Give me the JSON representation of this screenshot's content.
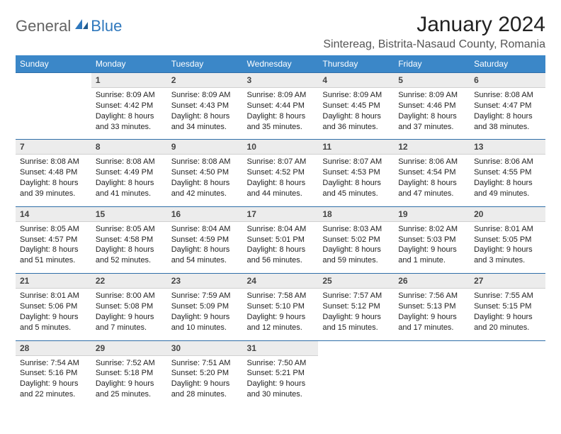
{
  "logo": {
    "general": "General",
    "blue": "Blue"
  },
  "title": "January 2024",
  "location": "Sintereag, Bistrita-Nasaud County, Romania",
  "colors": {
    "header_bg": "#3b87c8",
    "header_text": "#ffffff",
    "daynum_bg": "#ececec",
    "accent_border": "#2f6ea8",
    "logo_blue": "#2f78bd",
    "logo_gray": "#636363"
  },
  "typography": {
    "title_fontsize": 30,
    "location_fontsize": 16,
    "dow_fontsize": 12,
    "cell_fontsize": 11
  },
  "day_names": [
    "Sunday",
    "Monday",
    "Tuesday",
    "Wednesday",
    "Thursday",
    "Friday",
    "Saturday"
  ],
  "weeks": [
    {
      "nums": [
        "",
        "1",
        "2",
        "3",
        "4",
        "5",
        "6"
      ],
      "cells": [
        null,
        {
          "sunrise": "Sunrise: 8:09 AM",
          "sunset": "Sunset: 4:42 PM",
          "day1": "Daylight: 8 hours",
          "day2": "and 33 minutes."
        },
        {
          "sunrise": "Sunrise: 8:09 AM",
          "sunset": "Sunset: 4:43 PM",
          "day1": "Daylight: 8 hours",
          "day2": "and 34 minutes."
        },
        {
          "sunrise": "Sunrise: 8:09 AM",
          "sunset": "Sunset: 4:44 PM",
          "day1": "Daylight: 8 hours",
          "day2": "and 35 minutes."
        },
        {
          "sunrise": "Sunrise: 8:09 AM",
          "sunset": "Sunset: 4:45 PM",
          "day1": "Daylight: 8 hours",
          "day2": "and 36 minutes."
        },
        {
          "sunrise": "Sunrise: 8:09 AM",
          "sunset": "Sunset: 4:46 PM",
          "day1": "Daylight: 8 hours",
          "day2": "and 37 minutes."
        },
        {
          "sunrise": "Sunrise: 8:08 AM",
          "sunset": "Sunset: 4:47 PM",
          "day1": "Daylight: 8 hours",
          "day2": "and 38 minutes."
        }
      ]
    },
    {
      "nums": [
        "7",
        "8",
        "9",
        "10",
        "11",
        "12",
        "13"
      ],
      "cells": [
        {
          "sunrise": "Sunrise: 8:08 AM",
          "sunset": "Sunset: 4:48 PM",
          "day1": "Daylight: 8 hours",
          "day2": "and 39 minutes."
        },
        {
          "sunrise": "Sunrise: 8:08 AM",
          "sunset": "Sunset: 4:49 PM",
          "day1": "Daylight: 8 hours",
          "day2": "and 41 minutes."
        },
        {
          "sunrise": "Sunrise: 8:08 AM",
          "sunset": "Sunset: 4:50 PM",
          "day1": "Daylight: 8 hours",
          "day2": "and 42 minutes."
        },
        {
          "sunrise": "Sunrise: 8:07 AM",
          "sunset": "Sunset: 4:52 PM",
          "day1": "Daylight: 8 hours",
          "day2": "and 44 minutes."
        },
        {
          "sunrise": "Sunrise: 8:07 AM",
          "sunset": "Sunset: 4:53 PM",
          "day1": "Daylight: 8 hours",
          "day2": "and 45 minutes."
        },
        {
          "sunrise": "Sunrise: 8:06 AM",
          "sunset": "Sunset: 4:54 PM",
          "day1": "Daylight: 8 hours",
          "day2": "and 47 minutes."
        },
        {
          "sunrise": "Sunrise: 8:06 AM",
          "sunset": "Sunset: 4:55 PM",
          "day1": "Daylight: 8 hours",
          "day2": "and 49 minutes."
        }
      ]
    },
    {
      "nums": [
        "14",
        "15",
        "16",
        "17",
        "18",
        "19",
        "20"
      ],
      "cells": [
        {
          "sunrise": "Sunrise: 8:05 AM",
          "sunset": "Sunset: 4:57 PM",
          "day1": "Daylight: 8 hours",
          "day2": "and 51 minutes."
        },
        {
          "sunrise": "Sunrise: 8:05 AM",
          "sunset": "Sunset: 4:58 PM",
          "day1": "Daylight: 8 hours",
          "day2": "and 52 minutes."
        },
        {
          "sunrise": "Sunrise: 8:04 AM",
          "sunset": "Sunset: 4:59 PM",
          "day1": "Daylight: 8 hours",
          "day2": "and 54 minutes."
        },
        {
          "sunrise": "Sunrise: 8:04 AM",
          "sunset": "Sunset: 5:01 PM",
          "day1": "Daylight: 8 hours",
          "day2": "and 56 minutes."
        },
        {
          "sunrise": "Sunrise: 8:03 AM",
          "sunset": "Sunset: 5:02 PM",
          "day1": "Daylight: 8 hours",
          "day2": "and 59 minutes."
        },
        {
          "sunrise": "Sunrise: 8:02 AM",
          "sunset": "Sunset: 5:03 PM",
          "day1": "Daylight: 9 hours",
          "day2": "and 1 minute."
        },
        {
          "sunrise": "Sunrise: 8:01 AM",
          "sunset": "Sunset: 5:05 PM",
          "day1": "Daylight: 9 hours",
          "day2": "and 3 minutes."
        }
      ]
    },
    {
      "nums": [
        "21",
        "22",
        "23",
        "24",
        "25",
        "26",
        "27"
      ],
      "cells": [
        {
          "sunrise": "Sunrise: 8:01 AM",
          "sunset": "Sunset: 5:06 PM",
          "day1": "Daylight: 9 hours",
          "day2": "and 5 minutes."
        },
        {
          "sunrise": "Sunrise: 8:00 AM",
          "sunset": "Sunset: 5:08 PM",
          "day1": "Daylight: 9 hours",
          "day2": "and 7 minutes."
        },
        {
          "sunrise": "Sunrise: 7:59 AM",
          "sunset": "Sunset: 5:09 PM",
          "day1": "Daylight: 9 hours",
          "day2": "and 10 minutes."
        },
        {
          "sunrise": "Sunrise: 7:58 AM",
          "sunset": "Sunset: 5:10 PM",
          "day1": "Daylight: 9 hours",
          "day2": "and 12 minutes."
        },
        {
          "sunrise": "Sunrise: 7:57 AM",
          "sunset": "Sunset: 5:12 PM",
          "day1": "Daylight: 9 hours",
          "day2": "and 15 minutes."
        },
        {
          "sunrise": "Sunrise: 7:56 AM",
          "sunset": "Sunset: 5:13 PM",
          "day1": "Daylight: 9 hours",
          "day2": "and 17 minutes."
        },
        {
          "sunrise": "Sunrise: 7:55 AM",
          "sunset": "Sunset: 5:15 PM",
          "day1": "Daylight: 9 hours",
          "day2": "and 20 minutes."
        }
      ]
    },
    {
      "nums": [
        "28",
        "29",
        "30",
        "31",
        "",
        "",
        ""
      ],
      "cells": [
        {
          "sunrise": "Sunrise: 7:54 AM",
          "sunset": "Sunset: 5:16 PM",
          "day1": "Daylight: 9 hours",
          "day2": "and 22 minutes."
        },
        {
          "sunrise": "Sunrise: 7:52 AM",
          "sunset": "Sunset: 5:18 PM",
          "day1": "Daylight: 9 hours",
          "day2": "and 25 minutes."
        },
        {
          "sunrise": "Sunrise: 7:51 AM",
          "sunset": "Sunset: 5:20 PM",
          "day1": "Daylight: 9 hours",
          "day2": "and 28 minutes."
        },
        {
          "sunrise": "Sunrise: 7:50 AM",
          "sunset": "Sunset: 5:21 PM",
          "day1": "Daylight: 9 hours",
          "day2": "and 30 minutes."
        },
        null,
        null,
        null
      ]
    }
  ]
}
